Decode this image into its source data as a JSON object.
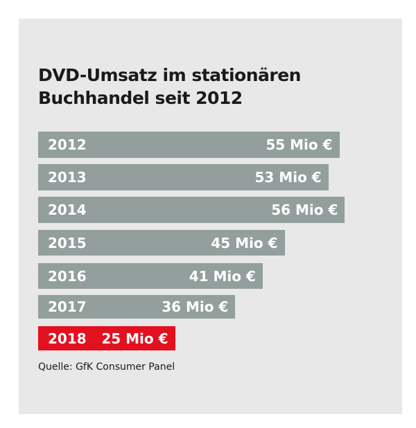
{
  "chart_data": {
    "type": "bar",
    "orientation": "horizontal",
    "title": "DVD-Umsatz im stationären Buchhandel seit 2012",
    "categories": [
      "2012",
      "2013",
      "2014",
      "2015",
      "2016",
      "2017",
      "2018"
    ],
    "values": [
      55,
      53,
      56,
      45,
      41,
      36,
      25
    ],
    "value_labels": [
      "55 Mio €",
      "53 Mio €",
      "56 Mio €",
      "45 Mio €",
      "41 Mio €",
      "36 Mio €",
      "25 Mio €"
    ],
    "unit": "Mio €",
    "highlight_index": 6,
    "colors": {
      "bar": "#929f9d",
      "highlight": "#e3101f",
      "background": "#e7e8e7"
    },
    "source": "Quelle: GfK Consumer Panel"
  }
}
